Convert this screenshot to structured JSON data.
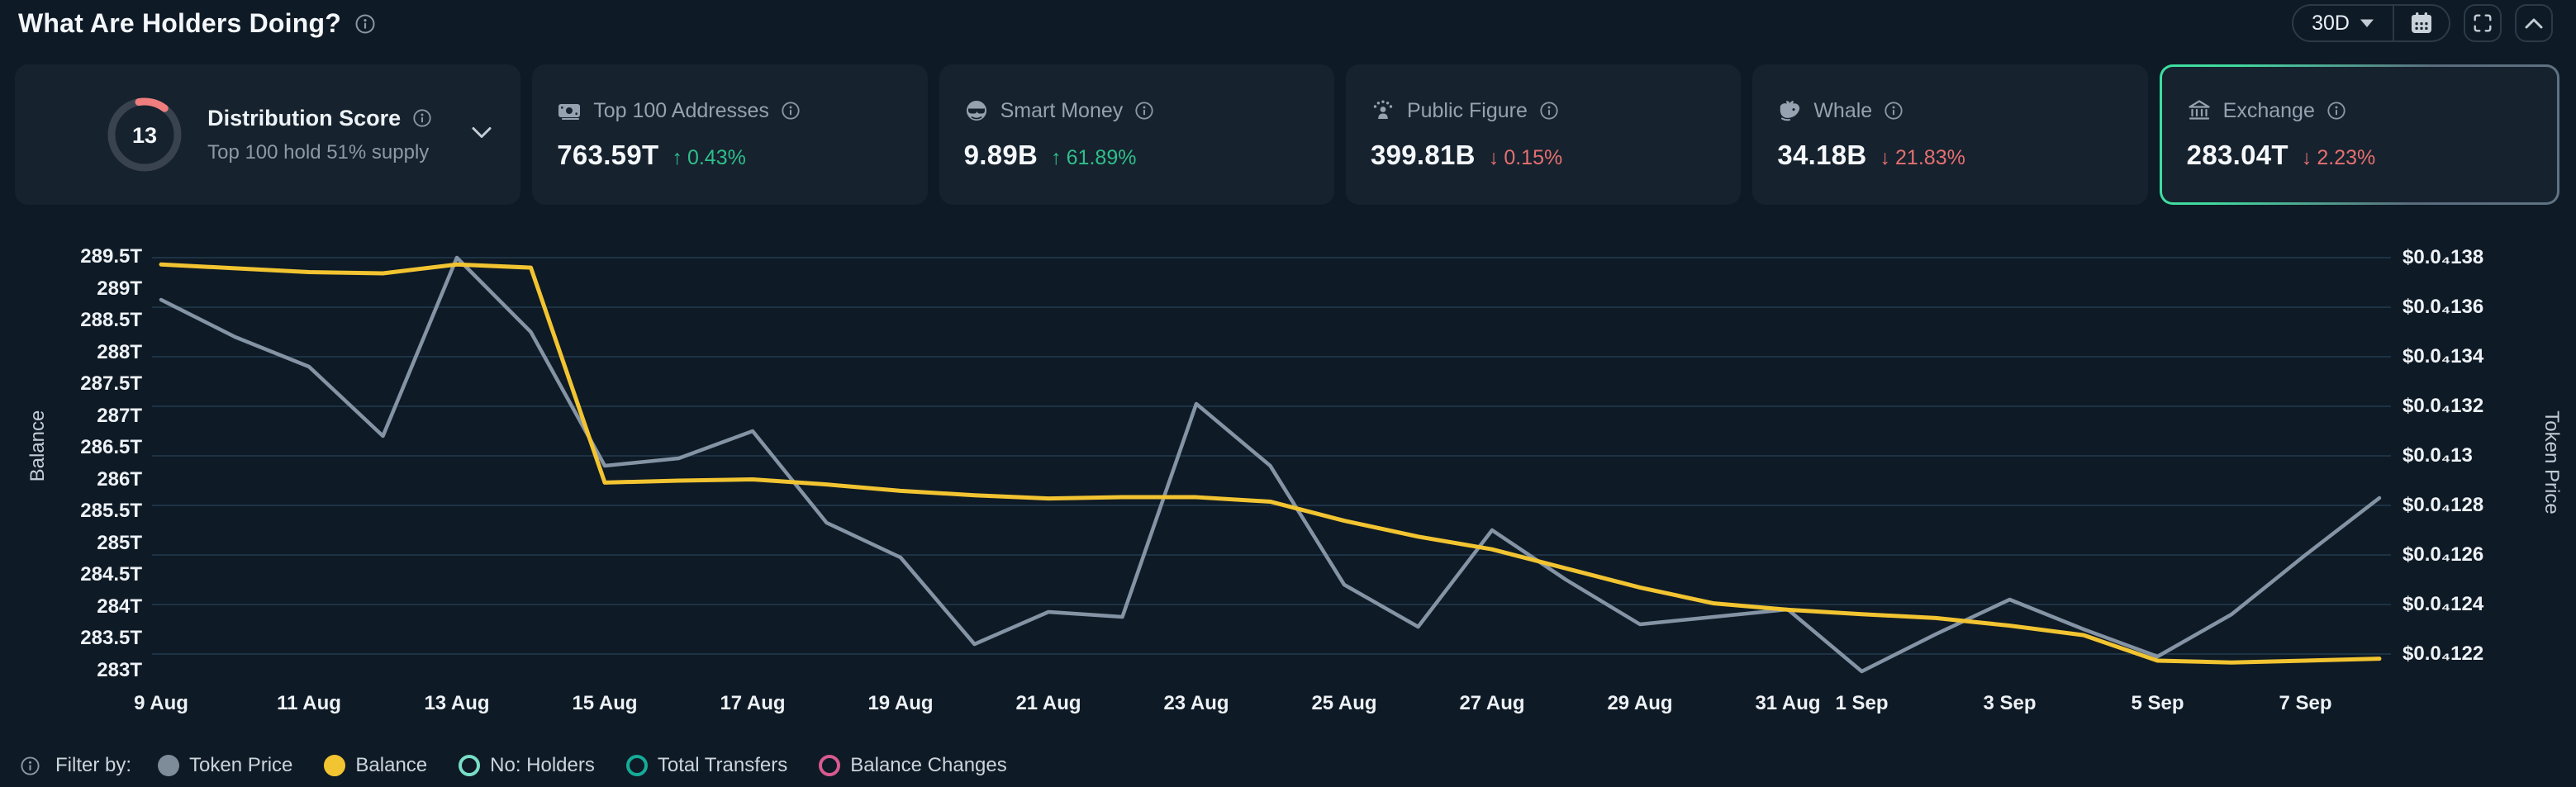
{
  "header": {
    "title": "What Are Holders Doing?",
    "range_selector": {
      "label": "30D",
      "icon": "caret-down-icon"
    },
    "controls": [
      {
        "name": "calendar-button",
        "icon": "calendar-icon"
      },
      {
        "name": "fullscreen-button",
        "icon": "fullscreen-icon"
      },
      {
        "name": "collapse-button",
        "icon": "chevron-up-icon"
      }
    ]
  },
  "cards": [
    {
      "type": "distribution-score",
      "score": "13",
      "label": "Distribution Score",
      "subtitle": "Top 100 hold 51% supply",
      "icon": "score-gauge",
      "expander_icon": "chevron-down-icon"
    },
    {
      "label": "Top 100 Addresses",
      "icon": "banknote-icon",
      "value": "763.59T",
      "arrow": "↑",
      "change": "0.43%",
      "direction": "up"
    },
    {
      "label": "Smart Money",
      "icon": "smart-money-icon",
      "value": "9.89B",
      "arrow": "↑",
      "change": "61.89%",
      "direction": "up"
    },
    {
      "label": "Public Figure",
      "icon": "public-figure-icon",
      "value": "399.81B",
      "arrow": "↓",
      "change": "0.15%",
      "direction": "down"
    },
    {
      "label": "Whale",
      "icon": "whale-icon",
      "value": "34.18B",
      "arrow": "↓",
      "change": "21.83%",
      "direction": "down"
    },
    {
      "label": "Exchange",
      "icon": "bank-icon",
      "value": "283.04T",
      "arrow": "↓",
      "change": "2.23%",
      "direction": "down",
      "highlighted": true
    }
  ],
  "colors": {
    "up": "#2fbf8b",
    "down": "#e57070",
    "balance_line": "#f2c431",
    "price_line": "#8494a5",
    "gridline": "#1d3345",
    "accent_border": "#3ce0a1",
    "score_arc": "#ef7d7d"
  },
  "chart_data": {
    "type": "line",
    "title": "",
    "x": [
      "9 Aug",
      "10 Aug",
      "11 Aug",
      "12 Aug",
      "13 Aug",
      "14 Aug",
      "15 Aug",
      "16 Aug",
      "17 Aug",
      "18 Aug",
      "19 Aug",
      "20 Aug",
      "21 Aug",
      "22 Aug",
      "23 Aug",
      "24 Aug",
      "25 Aug",
      "26 Aug",
      "27 Aug",
      "28 Aug",
      "29 Aug",
      "30 Aug",
      "31 Aug",
      "1 Sep",
      "2 Sep",
      "3 Sep",
      "4 Sep",
      "5 Sep",
      "6 Sep",
      "7 Sep",
      "8 Sep"
    ],
    "series": [
      {
        "name": "Balance",
        "axis": "left",
        "unit": "T",
        "values": [
          289.38,
          289.32,
          289.26,
          289.24,
          289.38,
          289.33,
          285.95,
          285.98,
          286.0,
          285.92,
          285.82,
          285.75,
          285.7,
          285.72,
          285.72,
          285.65,
          285.35,
          285.1,
          284.9,
          284.6,
          284.3,
          284.05,
          283.95,
          283.88,
          283.82,
          283.7,
          283.55,
          283.15,
          283.12,
          283.15,
          283.18
        ]
      },
      {
        "name": "Token Price",
        "axis": "right",
        "unit": "0.00001 USD",
        "values": [
          136.3,
          134.8,
          133.6,
          130.8,
          138.0,
          135.0,
          129.6,
          129.9,
          131.0,
          127.3,
          125.9,
          122.4,
          123.7,
          123.5,
          132.1,
          129.6,
          124.8,
          123.1,
          127.0,
          125.0,
          123.2,
          123.5,
          123.8,
          121.3,
          122.8,
          124.2,
          123.0,
          121.9,
          123.6,
          126.0,
          128.3
        ]
      }
    ],
    "left_axis": {
      "title": "Balance",
      "top_value": 289.5,
      "step": 0.5,
      "ticks": [
        "289.5T",
        "289T",
        "288.5T",
        "288T",
        "287.5T",
        "287T",
        "286.5T",
        "286T",
        "285.5T",
        "285T",
        "284.5T",
        "284T",
        "283.5T",
        "283T"
      ]
    },
    "right_axis": {
      "title": "Token Price",
      "top_value": 138,
      "step": 2,
      "ticks": [
        "$0.0₄138",
        "$0.0₄136",
        "$0.0₄134",
        "$0.0₄132",
        "$0.0₄13",
        "$0.0₄128",
        "$0.0₄126",
        "$0.0₄124",
        "$0.0₄122"
      ]
    },
    "x_tick_labels": [
      {
        "label": "9 Aug",
        "day": 0
      },
      {
        "label": "11 Aug",
        "day": 2
      },
      {
        "label": "13 Aug",
        "day": 4
      },
      {
        "label": "15 Aug",
        "day": 6
      },
      {
        "label": "17 Aug",
        "day": 8
      },
      {
        "label": "19 Aug",
        "day": 10
      },
      {
        "label": "21 Aug",
        "day": 12
      },
      {
        "label": "23 Aug",
        "day": 14
      },
      {
        "label": "25 Aug",
        "day": 16
      },
      {
        "label": "27 Aug",
        "day": 18
      },
      {
        "label": "29 Aug",
        "day": 20
      },
      {
        "label": "31 Aug",
        "day": 22
      },
      {
        "label": "1 Sep",
        "day": 23
      },
      {
        "label": "3 Sep",
        "day": 25
      },
      {
        "label": "5 Sep",
        "day": 27
      },
      {
        "label": "7 Sep",
        "day": 29
      }
    ],
    "grid": "horizontal",
    "legend_position": "bottom"
  },
  "filter": {
    "label": "Filter by:",
    "items": [
      {
        "label": "Token Price",
        "swatch": "filled",
        "color": "#7e8c9a",
        "selected": true
      },
      {
        "label": "Balance",
        "swatch": "radio",
        "color": "#f2c431",
        "selected": true
      },
      {
        "label": "No: Holders",
        "swatch": "ring",
        "color": "#79dec6",
        "selected": false
      },
      {
        "label": "Total Transfers",
        "swatch": "ring",
        "color": "#16ab99",
        "selected": false
      },
      {
        "label": "Balance Changes",
        "swatch": "ring",
        "color": "#d85a90",
        "selected": false
      }
    ]
  }
}
